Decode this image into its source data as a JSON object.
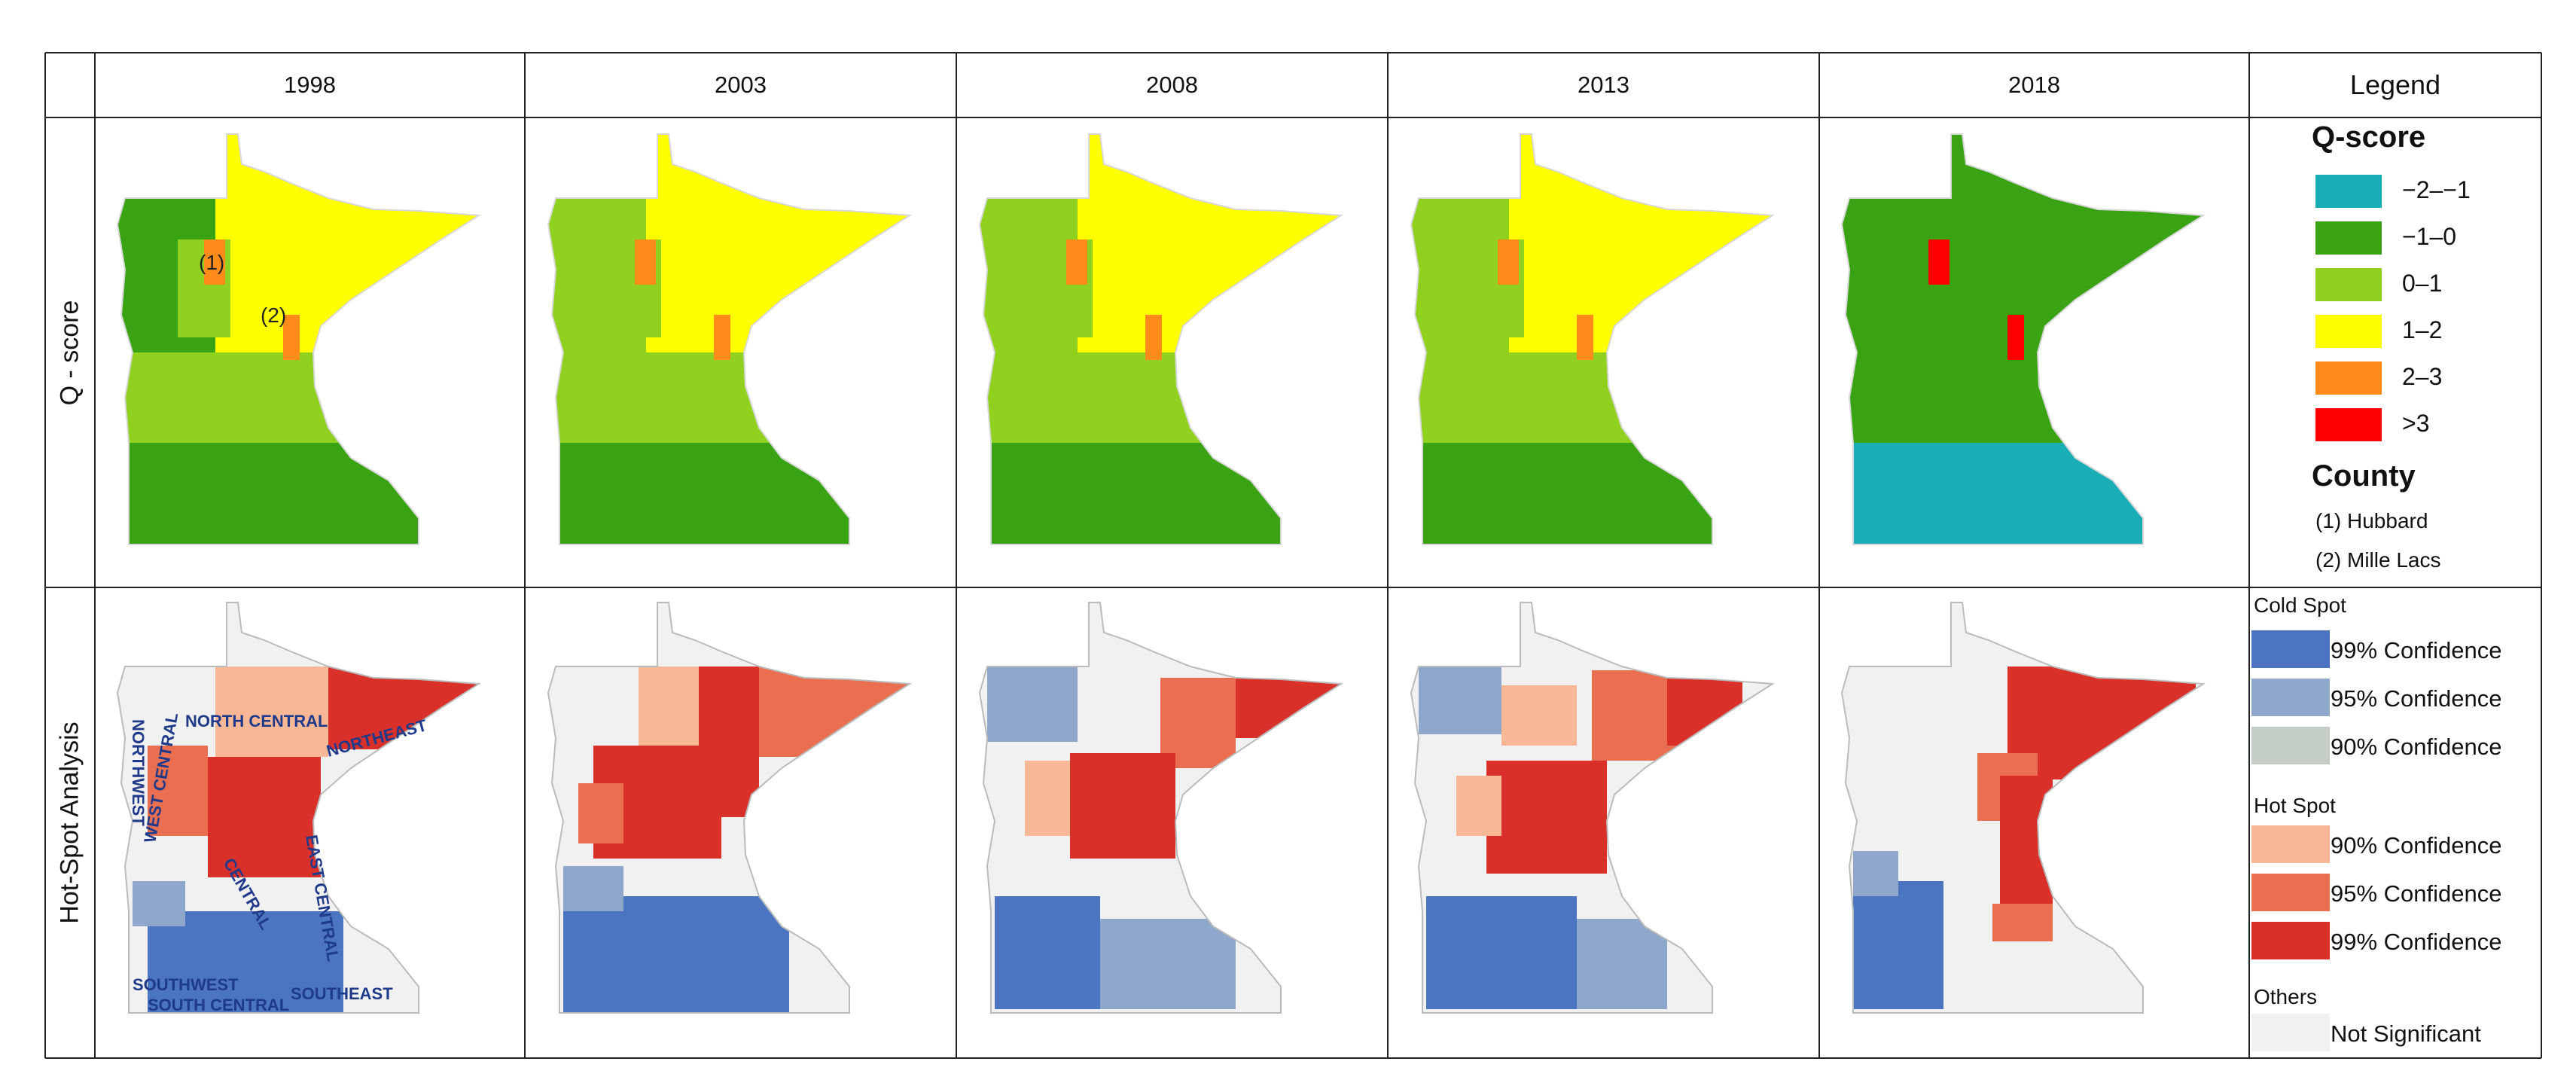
{
  "columns": [
    "1998",
    "2003",
    "2008",
    "2013",
    "2018"
  ],
  "legend_header": "Legend",
  "rows": {
    "qscore": "Q - score",
    "hotspot": "Hot-Spot Analysis"
  },
  "legend_q": {
    "title": "Q-score",
    "items": [
      {
        "label": "−2–−1",
        "color": "#19adb5"
      },
      {
        "label": "−1–0",
        "color": "#3aa314"
      },
      {
        "label": "0–1",
        "color": "#8fd11e"
      },
      {
        "label": "1–2",
        "color": "#ffff00"
      },
      {
        "label": "2–3",
        "color": "#ff8b1a"
      },
      {
        "label": ">3",
        "color": "#ff0000"
      }
    ],
    "county_title": "County",
    "counties": [
      "(1)  Hubbard",
      "(2)  Mille Lacs"
    ]
  },
  "legend_hs": {
    "cold_title": "Cold Spot",
    "cold": [
      {
        "label": "99% Confidence",
        "color": "#4b75c1"
      },
      {
        "label": "95% Confidence",
        "color": "#8fa7cb"
      },
      {
        "label": "90% Confidence",
        "color": "#c4cdc6"
      }
    ],
    "hot_title": "Hot Spot",
    "hot": [
      {
        "label": "90% Confidence",
        "color": "#f8b896"
      },
      {
        "label": "95% Confidence",
        "color": "#ea6f50"
      },
      {
        "label": "99% Confidence",
        "color": "#d9312a"
      }
    ],
    "others_title": "Others",
    "others": [
      {
        "label": "Not Significant",
        "color": "#f1f1f1"
      }
    ]
  },
  "map_labels": {
    "county_markers": [
      "(1)",
      "(2)"
    ],
    "regions": [
      "NORTHWEST",
      "NORTH CENTRAL",
      "NORTHEAST",
      "WEST CENTRAL",
      "CENTRAL",
      "EAST CENTRAL",
      "SOUTHWEST",
      "SOUTH CENTRAL",
      "SOUTHEAST"
    ]
  },
  "panels": {
    "q": [
      {
        "year": "1998",
        "south": "#3aa314",
        "mid": "#8fd11e",
        "north": "#ffff00",
        "west": "#3aa314",
        "accent": "#ff8b1a"
      },
      {
        "year": "2003",
        "south": "#3aa314",
        "mid": "#8fd11e",
        "north": "#ffff00",
        "west": "#8fd11e",
        "accent": "#ff8b1a"
      },
      {
        "year": "2008",
        "south": "#3aa314",
        "mid": "#8fd11e",
        "north": "#ffff00",
        "west": "#8fd11e",
        "accent": "#ff8b1a"
      },
      {
        "year": "2013",
        "south": "#3aa314",
        "mid": "#8fd11e",
        "north": "#ffff00",
        "west": "#8fd11e",
        "accent": "#ff8b1a"
      },
      {
        "year": "2018",
        "south": "#19adb5",
        "mid": "#3aa314",
        "north": "#3aa314",
        "west": "#3aa314",
        "accent": "#ff0000"
      }
    ]
  }
}
